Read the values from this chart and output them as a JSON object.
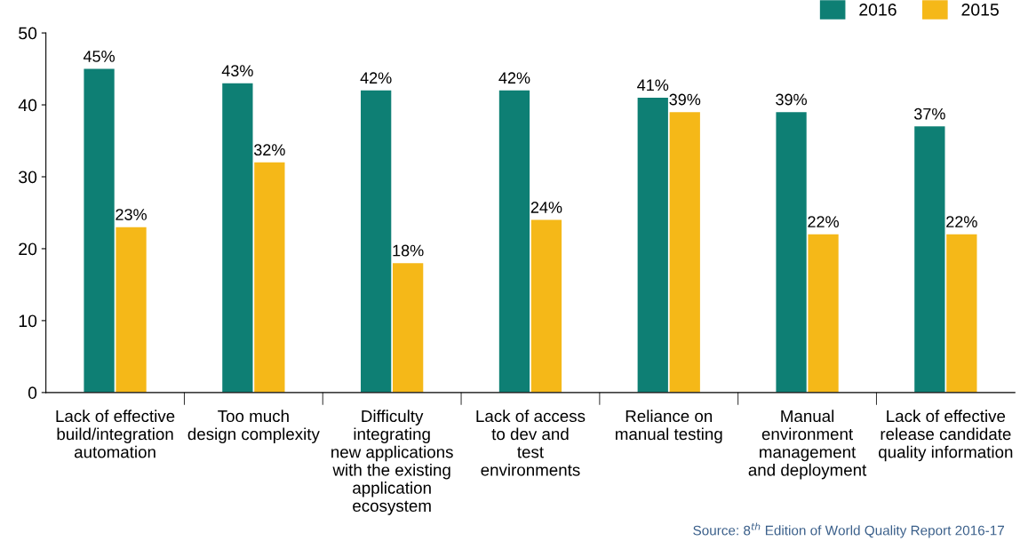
{
  "chart_data": {
    "type": "bar",
    "categories": [
      "Lack of effective\nbuild/integration\nautomation",
      "Too much\ndesign complexity",
      "Difficulty\nintegrating\nnew applications\nwith the existing\napplication\necosystem",
      "Lack of access\nto dev and\ntest\nenvironments",
      "Reliance on\nmanual testing",
      "Manual\nenvironment\nmanagement\nand deployment",
      "Lack of effective\nrelease candidate\nquality information"
    ],
    "series": [
      {
        "name": "2016",
        "color": "#0e7f74",
        "values": [
          45,
          43,
          42,
          42,
          41,
          39,
          37
        ],
        "value_labels": [
          "45%",
          "43%",
          "42%",
          "42%",
          "41%",
          "39%",
          "37%"
        ]
      },
      {
        "name": "2015",
        "color": "#f5b818",
        "values": [
          23,
          32,
          18,
          24,
          39,
          22,
          22
        ],
        "value_labels": [
          "23%",
          "32%",
          "18%",
          "24%",
          "39%",
          "22%",
          "22%"
        ]
      }
    ],
    "ylim": [
      0,
      50
    ],
    "yticks": [
      0,
      10,
      20,
      30,
      40,
      50
    ],
    "grid": false,
    "legend": "top right",
    "annotations": [
      "Source: 8$^{th}$ Edition of World Quality Report 2016-17"
    ]
  }
}
